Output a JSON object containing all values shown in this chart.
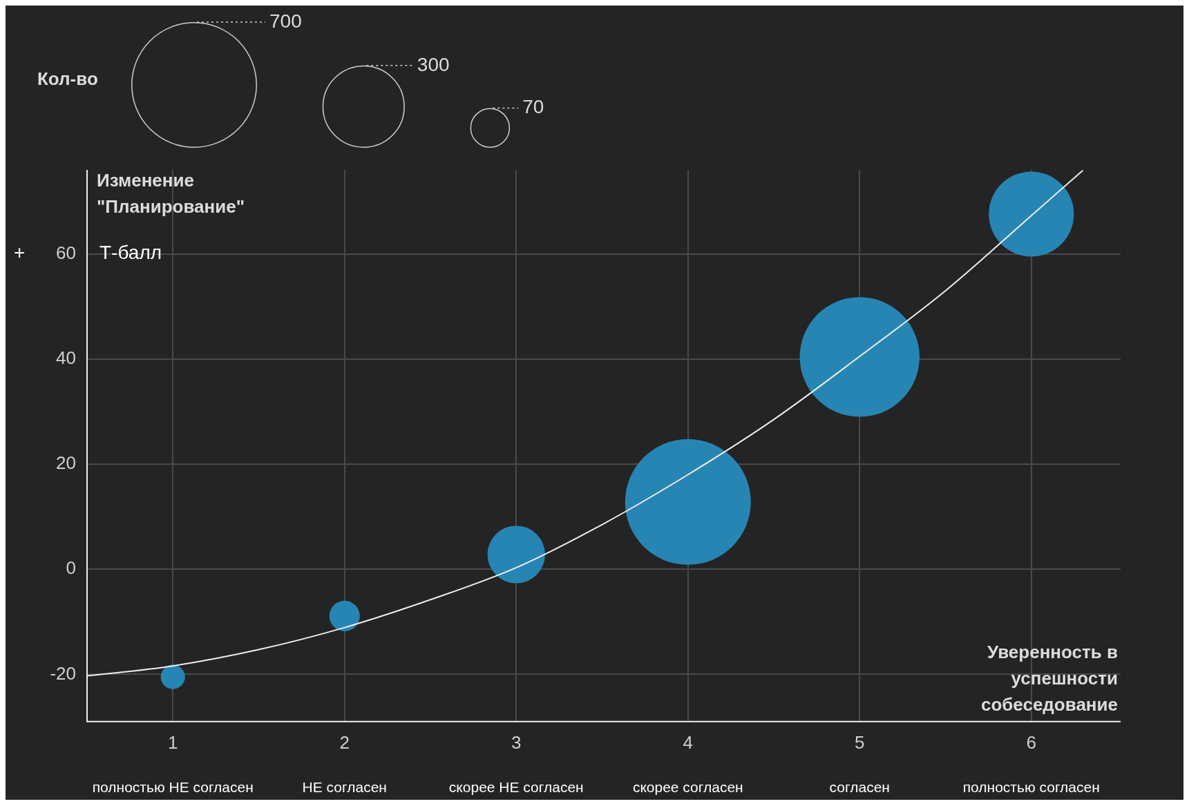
{
  "chart_data": {
    "type": "bubble",
    "ylabel": "Изменение \"Планирование\"",
    "xlabel": "Уверенность в успешности собеседование",
    "legend_title": "Кол-во",
    "annotations": [
      "+",
      "Т-балл",
      "полностью НЕ согласен",
      "НЕ согласен",
      "скорее НЕ согласен",
      "скорее согласен",
      "согласен",
      "полностью согласен"
    ],
    "xlim": [
      0.5,
      6.52
    ],
    "xticks": [
      1,
      2,
      3,
      4,
      5,
      6
    ],
    "ylim": [
      -29,
      76
    ],
    "yticks": [
      -20,
      0,
      20,
      40,
      60
    ],
    "grid": true,
    "legend": false,
    "size_legend": [
      700,
      300,
      70
    ],
    "series": [
      {
        "type": "bubble",
        "color": "#2785b3",
        "x": [
          1,
          2,
          3,
          4,
          5,
          6
        ],
        "values": [
          -20.5,
          -8.9,
          2.8,
          12.8,
          40.4,
          67.6
        ],
        "sizes": [
          26,
          41,
          147,
          700,
          635,
          320
        ]
      },
      {
        "type": "line",
        "color": "#eeeeee",
        "marker": "none",
        "x": [
          0.5,
          1,
          1.5,
          2,
          2.5,
          3,
          3.5,
          4,
          4.5,
          5,
          5.5,
          6,
          6.3
        ],
        "values": [
          -20.3,
          -18.4,
          -15.3,
          -11.1,
          -5.8,
          0.3,
          8.5,
          18,
          28.5,
          40.5,
          53,
          67.3,
          75.9
        ]
      }
    ]
  }
}
